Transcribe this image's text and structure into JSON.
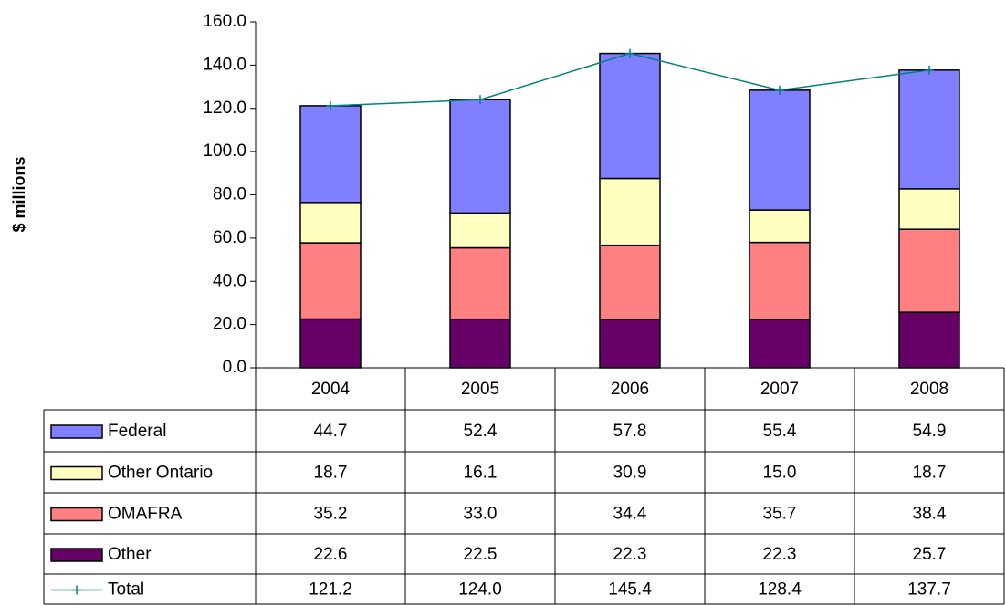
{
  "chart_data": {
    "type": "bar",
    "stacked": true,
    "y_label": "$ millions",
    "categories": [
      "2004",
      "2005",
      "2006",
      "2007",
      "2008"
    ],
    "series": [
      {
        "name": "Federal",
        "type": "bar",
        "color": "#8080ff",
        "values": [
          44.7,
          52.4,
          57.8,
          55.4,
          54.9
        ]
      },
      {
        "name": "Other Ontario",
        "type": "bar",
        "color": "#ffffc0",
        "values": [
          18.7,
          16.1,
          30.9,
          15,
          18.7
        ],
        "value_labels": [
          "18.7",
          "16.1",
          "30.9",
          "15.0",
          "18.7"
        ]
      },
      {
        "name": "OMAFRA",
        "type": "bar",
        "color": "#ff8080",
        "values": [
          35.2,
          33,
          34.4,
          35.7,
          38.4
        ],
        "value_labels": [
          "35.2",
          "33.0",
          "34.4",
          "35.7",
          "38.4"
        ]
      },
      {
        "name": "Other",
        "type": "bar",
        "color": "#660066",
        "values": [
          22.6,
          22.5,
          22.3,
          22.3,
          25.7
        ]
      },
      {
        "name": "Total",
        "type": "line",
        "color": "#008080",
        "values": [
          121.2,
          124,
          145.4,
          128.4,
          137.7
        ],
        "value_labels": [
          "121.2",
          "124.0",
          "145.4",
          "128.4",
          "137.7"
        ]
      }
    ],
    "ylim": [
      0,
      160
    ],
    "yticks": [
      {
        "value": 0,
        "label": "0.0"
      },
      {
        "value": 20,
        "label": "20.0"
      },
      {
        "value": 40,
        "label": "40.0"
      },
      {
        "value": 60,
        "label": "60.0"
      },
      {
        "value": 80,
        "label": "80.0"
      },
      {
        "value": 100,
        "label": "100.0"
      },
      {
        "value": 120,
        "label": "120.0"
      },
      {
        "value": 140,
        "label": "140.0"
      },
      {
        "value": 160,
        "label": "160.0"
      }
    ]
  }
}
